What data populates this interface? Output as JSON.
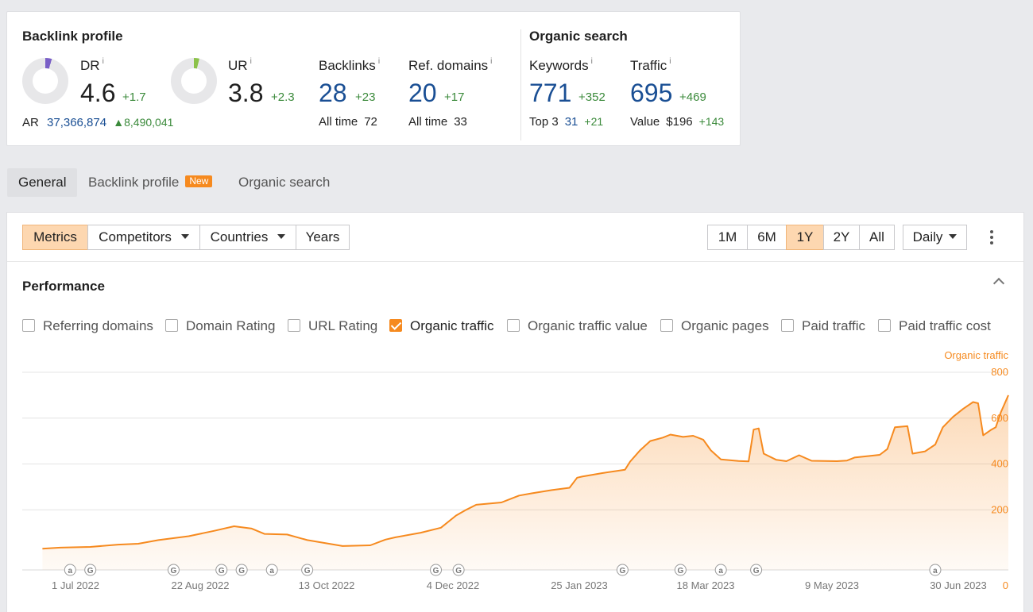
{
  "backlink_profile": {
    "title": "Backlink profile",
    "dr": {
      "label": "DR",
      "info": "i",
      "value": "4.6",
      "delta": "+1.7",
      "level": 0.046,
      "color": "#7a5fc7"
    },
    "ur": {
      "label": "UR",
      "info": "i",
      "value": "3.8",
      "delta": "+2.3",
      "level": 0.038,
      "color": "#8cc24a"
    },
    "ar": {
      "label": "AR",
      "value": "37,366,874",
      "delta": "▲8,490,041"
    },
    "backlinks": {
      "label": "Backlinks",
      "info": "i",
      "value": "28",
      "delta": "+23",
      "sub_label": "All time",
      "sub_value": "72"
    },
    "ref_domains": {
      "label": "Ref. domains",
      "info": "i",
      "value": "20",
      "delta": "+17",
      "sub_label": "All time",
      "sub_value": "33"
    }
  },
  "organic_search": {
    "title": "Organic search",
    "keywords": {
      "label": "Keywords",
      "info": "i",
      "value": "771",
      "delta": "+352",
      "sub_label": "Top 3",
      "sub_value": "31",
      "sub_delta": "+21"
    },
    "traffic": {
      "label": "Traffic",
      "info": "i",
      "value": "695",
      "delta": "+469",
      "sub_label": "Value",
      "sub_value": "$196",
      "sub_delta": "+143"
    }
  },
  "tabs": [
    {
      "label": "General",
      "active": true
    },
    {
      "label": "Backlink profile",
      "badge": "New"
    },
    {
      "label": "Organic search"
    }
  ],
  "toolbar": {
    "metrics": "Metrics",
    "competitors": "Competitors",
    "countries": "Countries",
    "years": "Years",
    "ranges": [
      "1M",
      "6M",
      "1Y",
      "2Y",
      "All"
    ],
    "selected_range": "1Y",
    "interval": "Daily"
  },
  "performance": {
    "title": "Performance",
    "checkboxes": [
      {
        "label": "Referring domains",
        "checked": false
      },
      {
        "label": "Domain Rating",
        "checked": false
      },
      {
        "label": "URL Rating",
        "checked": false
      },
      {
        "label": "Organic traffic",
        "checked": true
      },
      {
        "label": "Organic traffic value",
        "checked": false
      },
      {
        "label": "Organic pages",
        "checked": false
      },
      {
        "label": "Paid traffic",
        "checked": false
      },
      {
        "label": "Paid traffic cost",
        "checked": false
      }
    ]
  },
  "colors": {
    "accent": "#f68a1f",
    "positive": "#3b8a3b",
    "link": "#1a4f94"
  },
  "chart_data": {
    "type": "area",
    "ylabel": "Organic traffic",
    "ylim": [
      0,
      800
    ],
    "yticks": [
      0,
      200,
      400,
      600,
      800
    ],
    "grid": true,
    "x_tick_labels": [
      "1 Jul 2022",
      "22 Aug 2022",
      "13 Oct 2022",
      "4 Dec 2022",
      "25 Jan 2023",
      "18 Mar 2023",
      "9 May 2023",
      "30 Jun 2023"
    ],
    "x_range": [
      "2022-06-23",
      "2023-07-19"
    ],
    "series": [
      {
        "name": "Organic traffic",
        "color": "#f68a1f",
        "points": [
          [
            "2022-07-01",
            30
          ],
          [
            "2022-07-08",
            35
          ],
          [
            "2022-07-20",
            38
          ],
          [
            "2022-07-31",
            48
          ],
          [
            "2022-08-08",
            52
          ],
          [
            "2022-08-16",
            68
          ],
          [
            "2022-08-28",
            85
          ],
          [
            "2022-09-07",
            108
          ],
          [
            "2022-09-15",
            128
          ],
          [
            "2022-09-22",
            118
          ],
          [
            "2022-09-27",
            95
          ],
          [
            "2022-10-06",
            92
          ],
          [
            "2022-10-14",
            68
          ],
          [
            "2022-10-21",
            55
          ],
          [
            "2022-10-28",
            42
          ],
          [
            "2022-11-08",
            45
          ],
          [
            "2022-11-14",
            70
          ],
          [
            "2022-11-18",
            80
          ],
          [
            "2022-11-28",
            100
          ],
          [
            "2022-12-06",
            122
          ],
          [
            "2022-12-12",
            175
          ],
          [
            "2022-12-16",
            200
          ],
          [
            "2022-12-20",
            222
          ],
          [
            "2022-12-30",
            232
          ],
          [
            "2023-01-06",
            262
          ],
          [
            "2023-01-11",
            272
          ],
          [
            "2023-01-19",
            286
          ],
          [
            "2023-01-26",
            296
          ],
          [
            "2023-01-29",
            340
          ],
          [
            "2023-01-31",
            345
          ],
          [
            "2023-02-08",
            360
          ],
          [
            "2023-02-17",
            375
          ],
          [
            "2023-02-19",
            410
          ],
          [
            "2023-02-23",
            460
          ],
          [
            "2023-02-27",
            500
          ],
          [
            "2023-03-04",
            515
          ],
          [
            "2023-03-07",
            528
          ],
          [
            "2023-03-12",
            518
          ],
          [
            "2023-03-16",
            523
          ],
          [
            "2023-03-20",
            506
          ],
          [
            "2023-03-23",
            460
          ],
          [
            "2023-03-27",
            420
          ],
          [
            "2023-04-03",
            413
          ],
          [
            "2023-04-07",
            411
          ],
          [
            "2023-04-09",
            550
          ],
          [
            "2023-04-11",
            555
          ],
          [
            "2023-04-13",
            445
          ],
          [
            "2023-04-18",
            418
          ],
          [
            "2023-04-22",
            412
          ],
          [
            "2023-04-27",
            438
          ],
          [
            "2023-05-02",
            414
          ],
          [
            "2023-05-12",
            412
          ],
          [
            "2023-05-16",
            415
          ],
          [
            "2023-05-19",
            428
          ],
          [
            "2023-05-25",
            435
          ],
          [
            "2023-05-29",
            440
          ],
          [
            "2023-06-01",
            465
          ],
          [
            "2023-06-04",
            560
          ],
          [
            "2023-06-09",
            565
          ],
          [
            "2023-06-11",
            445
          ],
          [
            "2023-06-16",
            455
          ],
          [
            "2023-06-20",
            485
          ],
          [
            "2023-06-23",
            560
          ],
          [
            "2023-06-27",
            605
          ],
          [
            "2023-07-01",
            640
          ],
          [
            "2023-07-05",
            670
          ],
          [
            "2023-07-07",
            665
          ],
          [
            "2023-07-09",
            525
          ],
          [
            "2023-07-12",
            548
          ],
          [
            "2023-07-14",
            560
          ],
          [
            "2023-07-16",
            625
          ],
          [
            "2023-07-19",
            700
          ]
        ]
      }
    ],
    "annotations": [
      {
        "date": "2022-07-12",
        "icon": "a"
      },
      {
        "date": "2022-07-20",
        "icon": "G"
      },
      {
        "date": "2022-08-22",
        "icon": "G"
      },
      {
        "date": "2022-09-10",
        "icon": "G"
      },
      {
        "date": "2022-09-18",
        "icon": "G"
      },
      {
        "date": "2022-09-30",
        "icon": "a"
      },
      {
        "date": "2022-10-14",
        "icon": "G"
      },
      {
        "date": "2022-12-04",
        "icon": "G"
      },
      {
        "date": "2022-12-13",
        "icon": "G"
      },
      {
        "date": "2023-02-16",
        "icon": "G"
      },
      {
        "date": "2023-03-11",
        "icon": "G"
      },
      {
        "date": "2023-03-27",
        "icon": "a"
      },
      {
        "date": "2023-04-10",
        "icon": "G"
      },
      {
        "date": "2023-06-20",
        "icon": "a"
      }
    ]
  }
}
